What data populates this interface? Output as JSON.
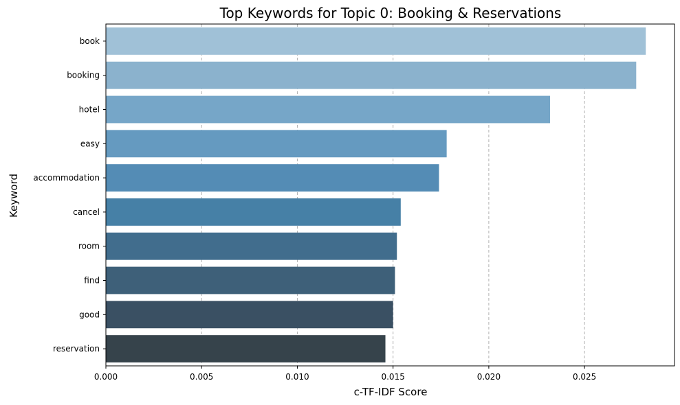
{
  "chart_data": {
    "type": "bar",
    "orientation": "horizontal",
    "title": "Top Keywords for Topic 0: Booking & Reservations",
    "xlabel": "c-TF-IDF Score",
    "ylabel": "Keyword",
    "categories": [
      "book",
      "booking",
      "hotel",
      "easy",
      "accommodation",
      "cancel",
      "room",
      "find",
      "good",
      "reservation"
    ],
    "values": [
      0.0282,
      0.0277,
      0.0232,
      0.0178,
      0.0174,
      0.0154,
      0.0152,
      0.0151,
      0.015,
      0.0146
    ],
    "colors": [
      "#a0c1d7",
      "#8bb2cd",
      "#76a6c8",
      "#659ac0",
      "#548cb5",
      "#4680a6",
      "#416d8d",
      "#3e6079",
      "#3a5063",
      "#36434b"
    ],
    "xlim": [
      0,
      0.0297
    ],
    "xticks": [
      "0.000",
      "0.005",
      "0.010",
      "0.015",
      "0.020",
      "0.025"
    ],
    "xtick_values": [
      0,
      0.005,
      0.01,
      0.015,
      0.02,
      0.025
    ],
    "grid": "x-dashed"
  }
}
